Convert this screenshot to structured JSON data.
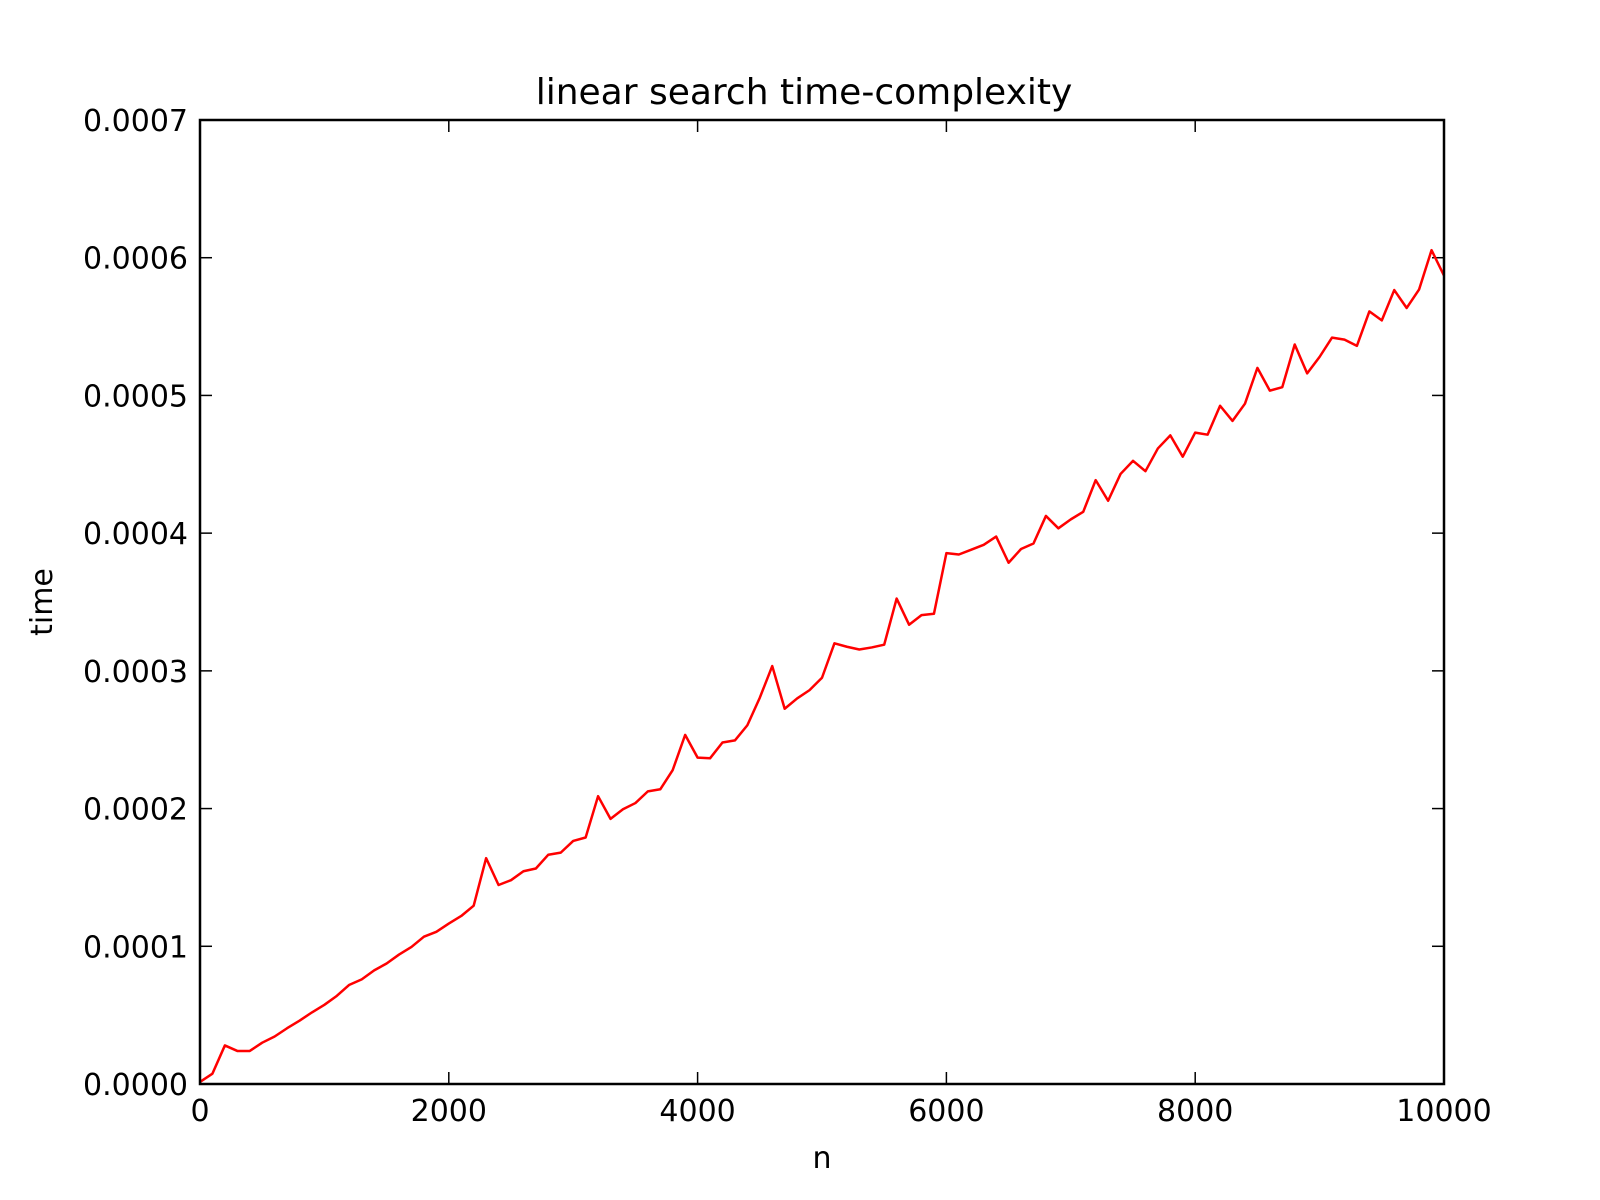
{
  "chart_data": {
    "type": "line",
    "title": "linear search time-complexity",
    "xlabel": "n",
    "ylabel": "time",
    "xlim": [
      0,
      10000
    ],
    "ylim": [
      0,
      0.0007
    ],
    "xticks": [
      0,
      2000,
      4000,
      6000,
      8000,
      10000
    ],
    "xtick_labels": [
      "0",
      "2000",
      "4000",
      "6000",
      "8000",
      "10000"
    ],
    "yticks": [
      0,
      0.0001,
      0.0002,
      0.0003,
      0.0004,
      0.0005,
      0.0006,
      0.0007
    ],
    "ytick_labels": [
      "0.0000",
      "0.0001",
      "0.0002",
      "0.0003",
      "0.0004",
      "0.0005",
      "0.0006",
      "0.0007"
    ],
    "grid": false,
    "legend": "none",
    "series": [
      {
        "color": "#ff0000",
        "x": [
          0,
          100,
          200,
          300,
          400,
          500,
          600,
          700,
          800,
          900,
          1000,
          1100,
          1200,
          1300,
          1400,
          1500,
          1600,
          1700,
          1800,
          1900,
          2000,
          2100,
          2200,
          2300,
          2400,
          2500,
          2600,
          2700,
          2800,
          2900,
          3000,
          3100,
          3200,
          3300,
          3400,
          3500,
          3600,
          3700,
          3800,
          3900,
          4000,
          4100,
          4200,
          4300,
          4400,
          4500,
          4600,
          4700,
          4800,
          4900,
          5000,
          5100,
          5200,
          5300,
          5400,
          5500,
          5600,
          5700,
          5800,
          5900,
          6000,
          6100,
          6200,
          6300,
          6400,
          6500,
          6600,
          6700,
          6800,
          6900,
          7000,
          7100,
          7200,
          7300,
          7400,
          7500,
          7600,
          7700,
          7800,
          7900,
          8000,
          8100,
          8200,
          8300,
          8400,
          8500,
          8600,
          8700,
          8800,
          8900,
          9000,
          9100,
          9200,
          9300,
          9400,
          9500,
          9600,
          9700,
          9800,
          9900,
          10000
        ],
        "y": [
          1.5e-06,
          7.5e-06,
          2.8e-05,
          2.4e-05,
          2.4e-05,
          3e-05,
          3.45e-05,
          4.05e-05,
          4.6e-05,
          5.2e-05,
          5.75e-05,
          6.4e-05,
          7.2e-05,
          7.6e-05,
          8.25e-05,
          8.75e-05,
          9.4e-05,
          9.95e-05,
          0.000107,
          0.0001105,
          0.0001165,
          0.000122,
          0.0001295,
          0.000164,
          0.0001445,
          0.000148,
          0.0001545,
          0.0001565,
          0.0001665,
          0.000168,
          0.0001765,
          0.000179,
          0.000209,
          0.0001925,
          0.0001995,
          0.000204,
          0.0002125,
          0.000214,
          0.000228,
          0.0002535,
          0.000237,
          0.0002365,
          0.000248,
          0.0002495,
          0.0002605,
          0.0002805,
          0.0003035,
          0.0002725,
          0.00028,
          0.000286,
          0.000295,
          0.00032,
          0.0003175,
          0.0003155,
          0.000317,
          0.000319,
          0.0003525,
          0.0003335,
          0.0003405,
          0.0003415,
          0.0003855,
          0.0003845,
          0.000388,
          0.0003915,
          0.0003975,
          0.0003785,
          0.0003885,
          0.0003925,
          0.0004125,
          0.0004035,
          0.00041,
          0.0004155,
          0.0004385,
          0.0004235,
          0.000443,
          0.0004525,
          0.000445,
          0.0004615,
          0.000471,
          0.0004555,
          0.000473,
          0.0004715,
          0.0004925,
          0.0004815,
          0.000494,
          0.00052,
          0.0005035,
          0.000506,
          0.000537,
          0.000516,
          0.000528,
          0.000542,
          0.0005405,
          0.000536,
          0.000561,
          0.0005545,
          0.0005765,
          0.0005635,
          0.000577,
          0.0006055,
          0.000587
        ]
      }
    ]
  }
}
